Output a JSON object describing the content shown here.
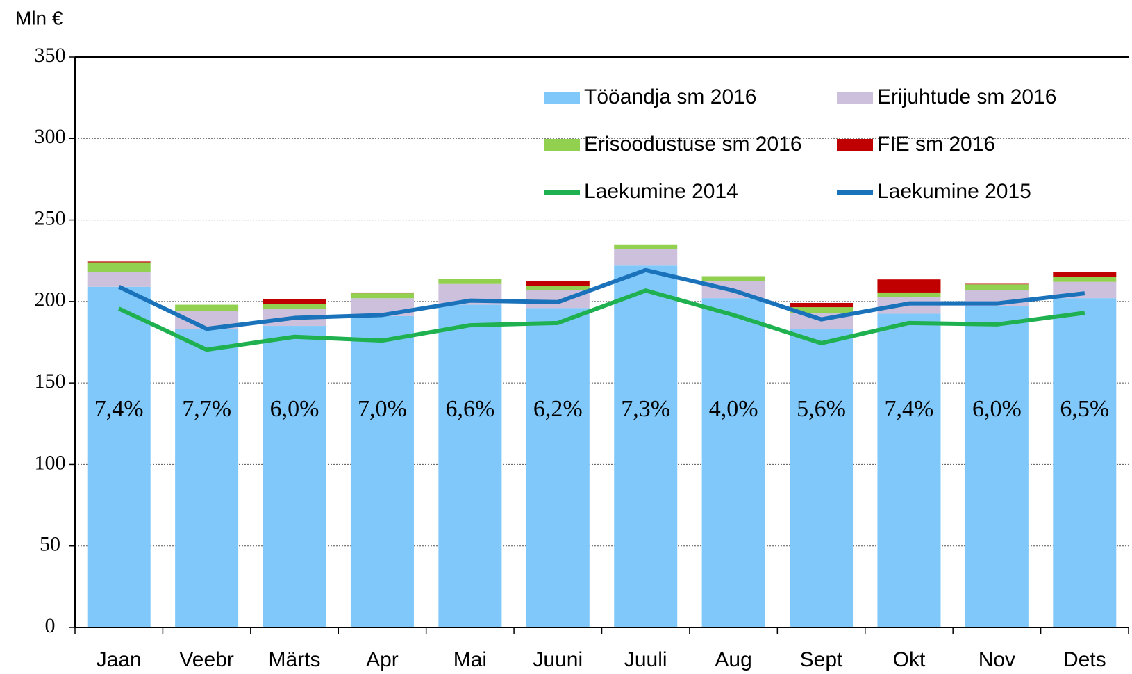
{
  "chart_data": {
    "type": "bar",
    "y_label": "Mln €",
    "categories": [
      "Jaan",
      "Veebr",
      "Märts",
      "Apr",
      "Mai",
      "Juuni",
      "Juuli",
      "Aug",
      "Sept",
      "Okt",
      "Nov",
      "Dets"
    ],
    "series": [
      {
        "name": "Tööandja sm 2016",
        "type": "bar",
        "color": "#80c8fa",
        "values": [
          209,
          183,
          185,
          191,
          198,
          196,
          222,
          202,
          183,
          192.5,
          197,
          202
        ]
      },
      {
        "name": "Erijuhtude sm 2016",
        "type": "bar",
        "color": "#cdc0dc",
        "values": [
          9,
          11,
          10.6,
          11,
          12.7,
          11,
          10,
          10.5,
          10,
          10,
          10,
          10
        ]
      },
      {
        "name": "Erisoodustuse sm 2016",
        "type": "bar",
        "color": "#92d050",
        "values": [
          6,
          4,
          3,
          3,
          3,
          2.5,
          3,
          3,
          3.5,
          3,
          3.5,
          3
        ]
      },
      {
        "name": "FIE sm 2016",
        "type": "bar",
        "color": "#c00000",
        "values": [
          0.5,
          0,
          3,
          0.5,
          0.3,
          3,
          0,
          0,
          2.6,
          8,
          0.3,
          3
        ]
      },
      {
        "name": "Laekumine 2014",
        "type": "line",
        "color": "#1fb050",
        "values": [
          195.6,
          170.4,
          178.3,
          176,
          185.4,
          186.8,
          206.7,
          191.7,
          174.4,
          186.8,
          185.9,
          193
        ]
      },
      {
        "name": "Laekumine 2015",
        "type": "line",
        "color": "#1a72bb",
        "values": [
          209,
          183.2,
          189.9,
          191.7,
          200.5,
          199.6,
          219.2,
          206.7,
          189,
          198.8,
          198.8,
          205
        ]
      }
    ],
    "annotations": [
      "7,4%",
      "7,7%",
      "6,0%",
      "7,0%",
      "6,6%",
      "6,2%",
      "7,3%",
      "4,0%",
      "5,6%",
      "7,4%",
      "6,0%",
      "6,5%"
    ],
    "ylim": [
      0,
      350
    ],
    "yticks": [
      0,
      50,
      100,
      150,
      200,
      250,
      300,
      350
    ],
    "grid": true,
    "legend": "upper right"
  }
}
